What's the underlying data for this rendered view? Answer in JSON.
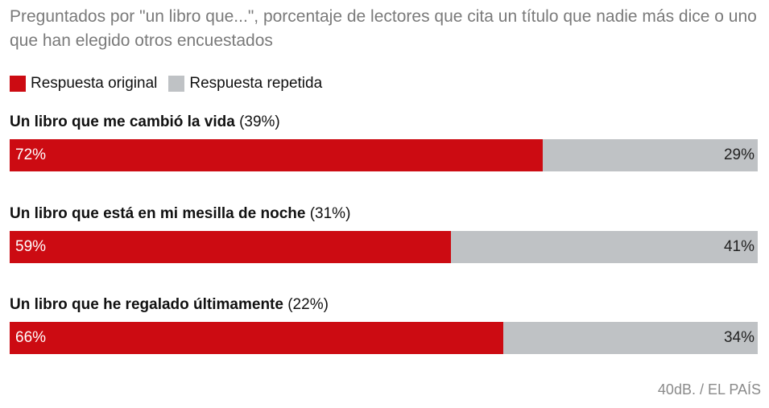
{
  "header": {
    "title": "Preguntados por \"un libro que...\", porcentaje de lectores que cita un título que nadie más dice o uno que han elegido otros encuestados"
  },
  "legend": [
    {
      "label": "Respuesta original",
      "color": "#cc0b12"
    },
    {
      "label": "Respuesta repetida",
      "color": "#bfc2c5"
    }
  ],
  "chart_data": {
    "type": "bar",
    "stacked": true,
    "orientation": "horizontal",
    "categories": [
      {
        "name": "Un libro que me cambió la vida",
        "share": "(39%)"
      },
      {
        "name": "Un libro que está en mi mesilla de noche",
        "share": "(31%)"
      },
      {
        "name": "Un libro que he regalado últimamente",
        "share": "(22%)"
      }
    ],
    "series": [
      {
        "name": "Respuesta original",
        "values": [
          72,
          59,
          66
        ],
        "labels": [
          "72%",
          "59%",
          "66%"
        ],
        "color": "#cc0b12"
      },
      {
        "name": "Respuesta repetida",
        "values": [
          29,
          41,
          34
        ],
        "labels": [
          "29%",
          "41%",
          "34%"
        ],
        "color": "#bfc2c5"
      }
    ]
  },
  "footer": {
    "source": "40dB. / EL PAÍS"
  }
}
